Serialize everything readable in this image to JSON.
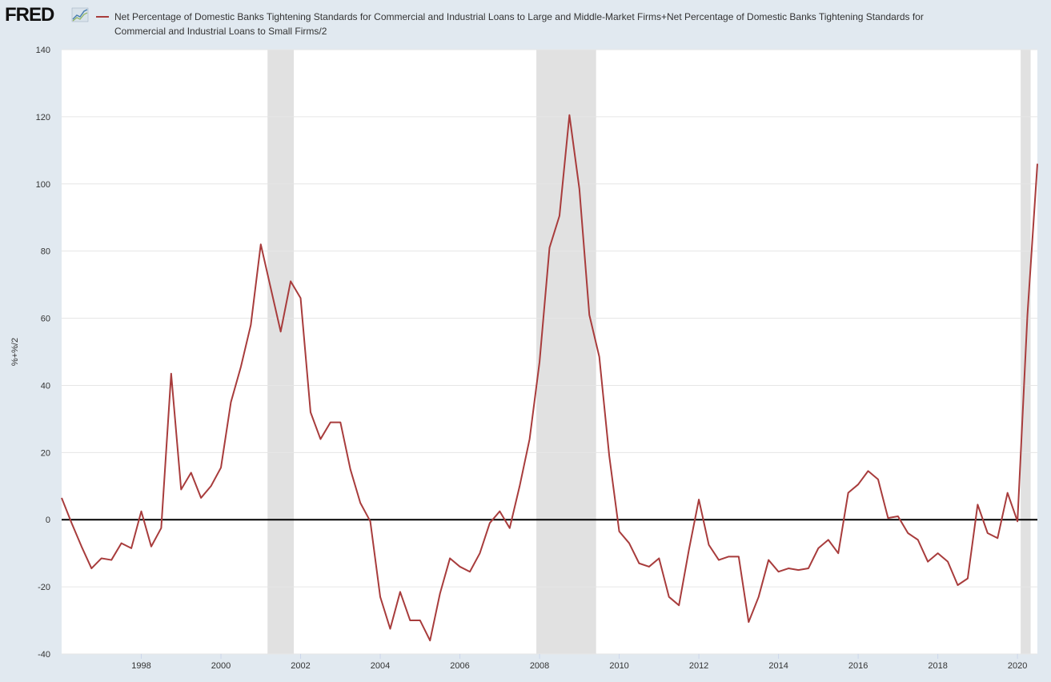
{
  "logo": "FRED",
  "chart_data": {
    "type": "line",
    "y_label": "%+%/2",
    "x": [
      1996,
      1996.25,
      1996.5,
      1996.75,
      1997,
      1997.25,
      1997.5,
      1997.75,
      1998,
      1998.25,
      1998.5,
      1998.75,
      1999,
      1999.25,
      1999.5,
      1999.75,
      2000,
      2000.25,
      2000.5,
      2000.75,
      2001,
      2001.25,
      2001.5,
      2001.75,
      2002,
      2002.25,
      2002.5,
      2002.75,
      2003,
      2003.25,
      2003.5,
      2003.75,
      2004,
      2004.25,
      2004.5,
      2004.75,
      2005,
      2005.25,
      2005.5,
      2005.75,
      2006,
      2006.25,
      2006.5,
      2006.75,
      2007,
      2007.25,
      2007.5,
      2007.75,
      2008,
      2008.25,
      2008.5,
      2008.75,
      2009,
      2009.25,
      2009.5,
      2009.75,
      2010,
      2010.25,
      2010.5,
      2010.75,
      2011,
      2011.25,
      2011.5,
      2011.75,
      2012,
      2012.25,
      2012.5,
      2012.75,
      2013,
      2013.25,
      2013.5,
      2013.75,
      2014,
      2014.25,
      2014.5,
      2014.75,
      2015,
      2015.25,
      2015.5,
      2015.75,
      2016,
      2016.25,
      2016.5,
      2016.75,
      2017,
      2017.25,
      2017.5,
      2017.75,
      2018,
      2018.25,
      2018.5,
      2018.75,
      2019,
      2019.25,
      2019.5,
      2019.75,
      2020,
      2020.25,
      2020.5
    ],
    "series": [
      {
        "name": "Net Percentage of Domestic Banks Tightening Standards for Commercial and Industrial Loans to Large and Middle-Market Firms+Net Percentage of Domestic Banks Tightening Standards for Commercial and Industrial Loans to Small Firms/2",
        "color": "#a83c3c",
        "values": [
          6.5,
          -1,
          -8,
          -14.5,
          -11.5,
          -12,
          -7,
          -8.5,
          2.5,
          -8,
          -2.5,
          43.5,
          9,
          14,
          6.5,
          10,
          15.5,
          35,
          45.5,
          58,
          82,
          69,
          56,
          71,
          66,
          32,
          24,
          29,
          29,
          15,
          5,
          -0.5,
          -23,
          -32.5,
          -21.5,
          -30,
          -30,
          -36,
          -22,
          -11.5,
          -14,
          -15.5,
          -10,
          -1,
          2.5,
          -2.5,
          10,
          24,
          47,
          81,
          90.5,
          120.5,
          98.5,
          61,
          48.5,
          19,
          -3.5,
          -7,
          -13,
          -14,
          -11.5,
          -23,
          -25.5,
          -9,
          6,
          -7.5,
          -12,
          -11,
          -11,
          -30.5,
          -23,
          -12,
          -15.5,
          -14.5,
          -15,
          -14.5,
          -8.5,
          -6,
          -10,
          8,
          10.5,
          14.5,
          12,
          0.5,
          1,
          -4,
          -6,
          -12.5,
          -10,
          -12.5,
          -19.5,
          -17.5,
          4.5,
          -4,
          -5.5,
          8,
          -0.5,
          61,
          106
        ]
      }
    ],
    "recessions": [
      [
        2001.17,
        2001.83
      ],
      [
        2007.92,
        2009.42
      ],
      [
        2020.08,
        2020.33
      ]
    ],
    "xlim": [
      1996,
      2020.5
    ],
    "xticks": [
      1998,
      2000,
      2002,
      2004,
      2006,
      2008,
      2010,
      2012,
      2014,
      2016,
      2018,
      2020
    ],
    "ylim": [
      -40,
      140
    ],
    "yticks": [
      -40,
      -20,
      0,
      20,
      40,
      60,
      80,
      100,
      120,
      140
    ],
    "grid": true
  }
}
